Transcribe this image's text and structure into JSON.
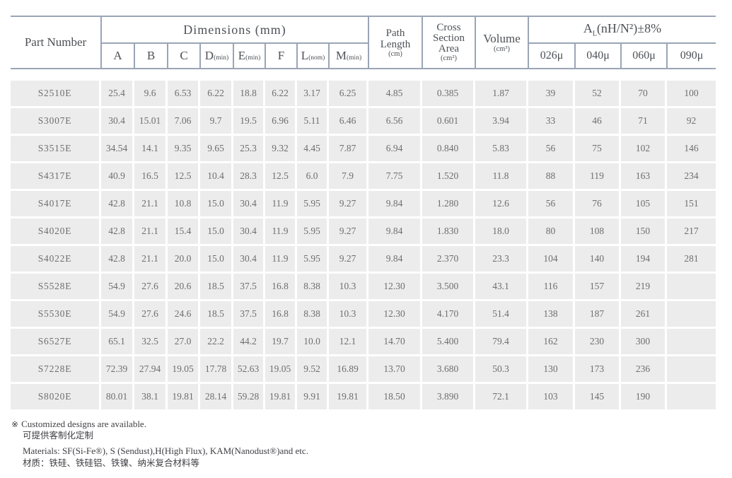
{
  "header": {
    "part_number": "Part Number",
    "dimensions_title": "Dimensions (mm)",
    "dim_cols": [
      {
        "main": "A",
        "sub": ""
      },
      {
        "main": "B",
        "sub": ""
      },
      {
        "main": "C",
        "sub": ""
      },
      {
        "main": "D",
        "sub": "(min)"
      },
      {
        "main": "E",
        "sub": "(min)"
      },
      {
        "main": "F",
        "sub": ""
      },
      {
        "main": "L",
        "sub": "(nom)"
      },
      {
        "main": "M",
        "sub": "(min)"
      }
    ],
    "path_length": {
      "line1": "Path",
      "line2": "Length",
      "unit": "(cm)"
    },
    "cross_section": {
      "line1": "Cross",
      "line2": "Section",
      "line3": "Area",
      "unit": "(cm²)"
    },
    "volume": {
      "label": "Volume",
      "unit": "(cm³)"
    },
    "al": {
      "symbol": "A",
      "symbol_sub": "L",
      "formula": "(nH/N²)±8%"
    },
    "mu_cols": [
      "026μ",
      "040μ",
      "060μ",
      "090μ"
    ]
  },
  "table": {
    "columns": [
      "Part Number",
      "A",
      "B",
      "C",
      "D(min)",
      "E(min)",
      "F",
      "L(nom)",
      "M(min)",
      "Path Length (cm)",
      "Cross Section Area (cm²)",
      "Volume (cm³)",
      "AL 026μ",
      "AL 040μ",
      "AL 060μ",
      "AL 090μ"
    ],
    "rows": [
      {
        "part_number": "S2510E",
        "values": [
          "25.4",
          "9.6",
          "6.53",
          "6.22",
          "18.8",
          "6.22",
          "3.17",
          "6.25",
          "4.85",
          "0.385",
          "1.87",
          "39",
          "52",
          "70",
          "100"
        ]
      },
      {
        "part_number": "S3007E",
        "values": [
          "30.4",
          "15.01",
          "7.06",
          "9.7",
          "19.5",
          "6.96",
          "5.11",
          "6.46",
          "6.56",
          "0.601",
          "3.94",
          "33",
          "46",
          "71",
          "92"
        ]
      },
      {
        "part_number": "S3515E",
        "values": [
          "34.54",
          "14.1",
          "9.35",
          "9.65",
          "25.3",
          "9.32",
          "4.45",
          "7.87",
          "6.94",
          "0.840",
          "5.83",
          "56",
          "75",
          "102",
          "146"
        ]
      },
      {
        "part_number": "S4317E",
        "values": [
          "40.9",
          "16.5",
          "12.5",
          "10.4",
          "28.3",
          "12.5",
          "6.0",
          "7.9",
          "7.75",
          "1.520",
          "11.8",
          "88",
          "119",
          "163",
          "234"
        ]
      },
      {
        "part_number": "S4017E",
        "values": [
          "42.8",
          "21.1",
          "10.8",
          "15.0",
          "30.4",
          "11.9",
          "5.95",
          "9.27",
          "9.84",
          "1.280",
          "12.6",
          "56",
          "76",
          "105",
          "151"
        ]
      },
      {
        "part_number": "S4020E",
        "values": [
          "42.8",
          "21.1",
          "15.4",
          "15.0",
          "30.4",
          "11.9",
          "5.95",
          "9.27",
          "9.84",
          "1.830",
          "18.0",
          "80",
          "108",
          "150",
          "217"
        ]
      },
      {
        "part_number": "S4022E",
        "values": [
          "42.8",
          "21.1",
          "20.0",
          "15.0",
          "30.4",
          "11.9",
          "5.95",
          "9.27",
          "9.84",
          "2.370",
          "23.3",
          "104",
          "140",
          "194",
          "281"
        ]
      },
      {
        "part_number": "S5528E",
        "values": [
          "54.9",
          "27.6",
          "20.6",
          "18.5",
          "37.5",
          "16.8",
          "8.38",
          "10.3",
          "12.30",
          "3.500",
          "43.1",
          "116",
          "157",
          "219",
          ""
        ]
      },
      {
        "part_number": "S5530E",
        "values": [
          "54.9",
          "27.6",
          "24.6",
          "18.5",
          "37.5",
          "16.8",
          "8.38",
          "10.3",
          "12.30",
          "4.170",
          "51.4",
          "138",
          "187",
          "261",
          ""
        ]
      },
      {
        "part_number": "S6527E",
        "values": [
          "65.1",
          "32.5",
          "27.0",
          "22.2",
          "44.2",
          "19.7",
          "10.0",
          "12.1",
          "14.70",
          "5.400",
          "79.4",
          "162",
          "230",
          "300",
          ""
        ]
      },
      {
        "part_number": "S7228E",
        "values": [
          "72.39",
          "27.94",
          "19.05",
          "17.78",
          "52.63",
          "19.05",
          "9.52",
          "16.89",
          "13.70",
          "3.680",
          "50.3",
          "130",
          "173",
          "236",
          ""
        ]
      },
      {
        "part_number": "S8020E",
        "values": [
          "80.01",
          "38.1",
          "19.81",
          "28.14",
          "59.28",
          "19.81",
          "9.91",
          "19.81",
          "18.50",
          "3.890",
          "72.1",
          "103",
          "145",
          "190",
          ""
        ]
      }
    ]
  },
  "footer": {
    "note_symbol": "※",
    "note_en": "Customized designs are available.",
    "note_zh": "可提供客制化定制",
    "materials_en": "Materials: SF(Si-Fe®), S (Sendust),H(High Flux), KAM(Nanodust®)and etc.",
    "materials_zh": "材质：铁硅、铁硅铝、铁镍、纳米复合材料等"
  },
  "colors": {
    "border": "#9aa5b6",
    "row_background": "#ececec",
    "data_text": "#6e6e6e",
    "header_text": "#4d5156"
  }
}
